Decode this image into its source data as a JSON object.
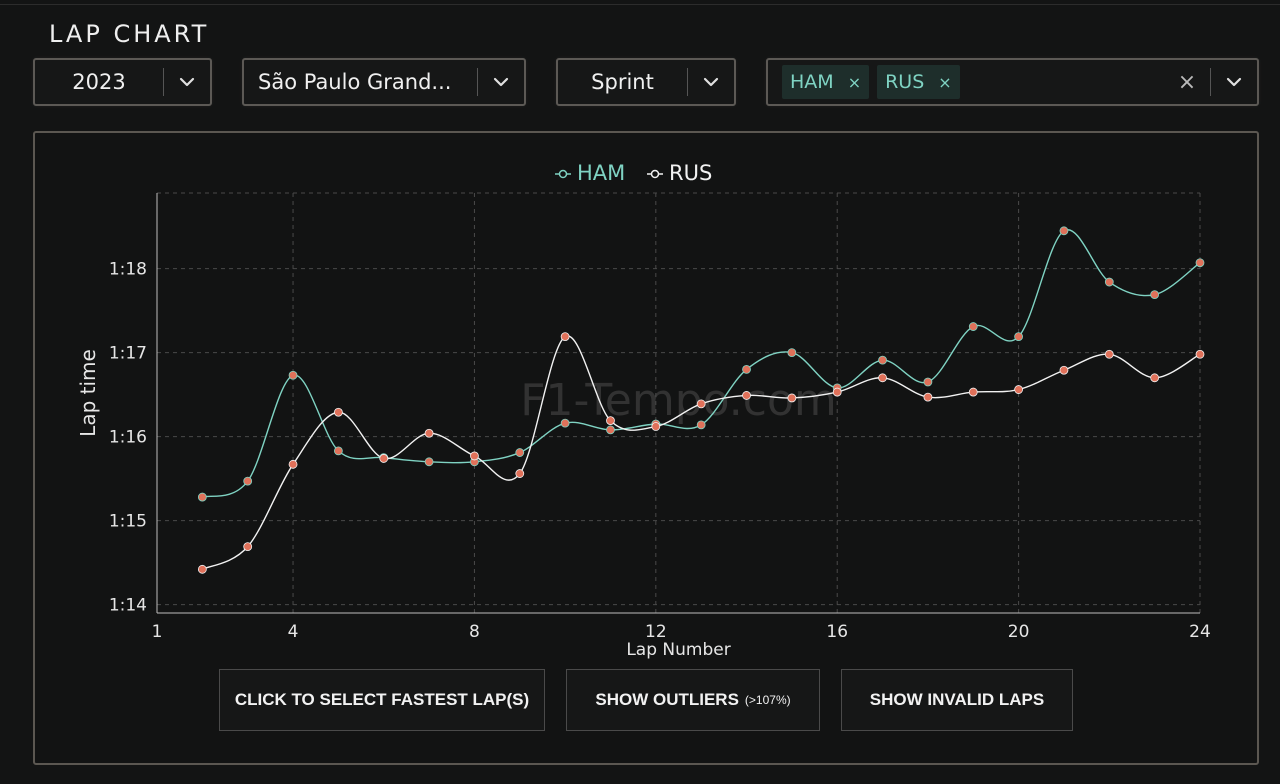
{
  "page": {
    "title": "LAP CHART",
    "watermark": "F1-Tempo.com"
  },
  "filters": {
    "year": "2023",
    "event": "São Paulo Grand...",
    "session": "Sprint",
    "drivers": [
      {
        "label": "HAM",
        "remove": "×"
      },
      {
        "label": "RUS",
        "remove": "×"
      }
    ],
    "clear": "×"
  },
  "buttons": {
    "fastest": "CLICK TO SELECT FASTEST LAP(S)",
    "outliers": "SHOW OUTLIERS",
    "outliers_note": "(>107%)",
    "invalid": "SHOW INVALID LAPS"
  },
  "colors": {
    "ham": "#7fd3c3",
    "rus": "#f2f2f2",
    "marker": "#e0715a",
    "grid": "#4a4a4a",
    "axis": "#bdbdbd"
  },
  "chart_data": {
    "type": "line",
    "xlabel": "Lap Number",
    "ylabel": "Lap time",
    "xlim": [
      1,
      24
    ],
    "ylim": [
      73.9,
      78.9
    ],
    "xticks": [
      1,
      4,
      8,
      12,
      16,
      20,
      24
    ],
    "yticks": [
      {
        "value": 74,
        "label": "1:14"
      },
      {
        "value": 75,
        "label": "1:15"
      },
      {
        "value": 76,
        "label": "1:16"
      },
      {
        "value": 77,
        "label": "1:17"
      },
      {
        "value": 78,
        "label": "1:18"
      }
    ],
    "grid": true,
    "legend": "top-center",
    "series": [
      {
        "name": "HAM",
        "color": "#7fd3c3",
        "x": [
          2,
          3,
          4,
          5,
          6,
          7,
          8,
          9,
          10,
          11,
          12,
          13,
          14,
          15,
          16,
          17,
          18,
          19,
          20,
          21,
          22,
          23,
          24
        ],
        "y": [
          75.28,
          75.47,
          76.73,
          75.83,
          75.75,
          75.7,
          75.7,
          75.81,
          76.16,
          76.08,
          76.15,
          76.14,
          76.8,
          77.0,
          76.58,
          76.91,
          76.65,
          77.31,
          77.19,
          78.45,
          77.84,
          77.69,
          78.07
        ]
      },
      {
        "name": "RUS",
        "color": "#f2f2f2",
        "x": [
          2,
          3,
          4,
          5,
          6,
          7,
          8,
          9,
          10,
          11,
          12,
          13,
          14,
          15,
          16,
          17,
          18,
          19,
          20,
          21,
          22,
          23,
          24
        ],
        "y": [
          74.42,
          74.69,
          75.67,
          76.29,
          75.74,
          76.04,
          75.77,
          75.56,
          77.19,
          76.19,
          76.12,
          76.39,
          76.49,
          76.46,
          76.53,
          76.7,
          76.47,
          76.53,
          76.56,
          76.79,
          76.98,
          76.7,
          76.98
        ]
      }
    ]
  }
}
